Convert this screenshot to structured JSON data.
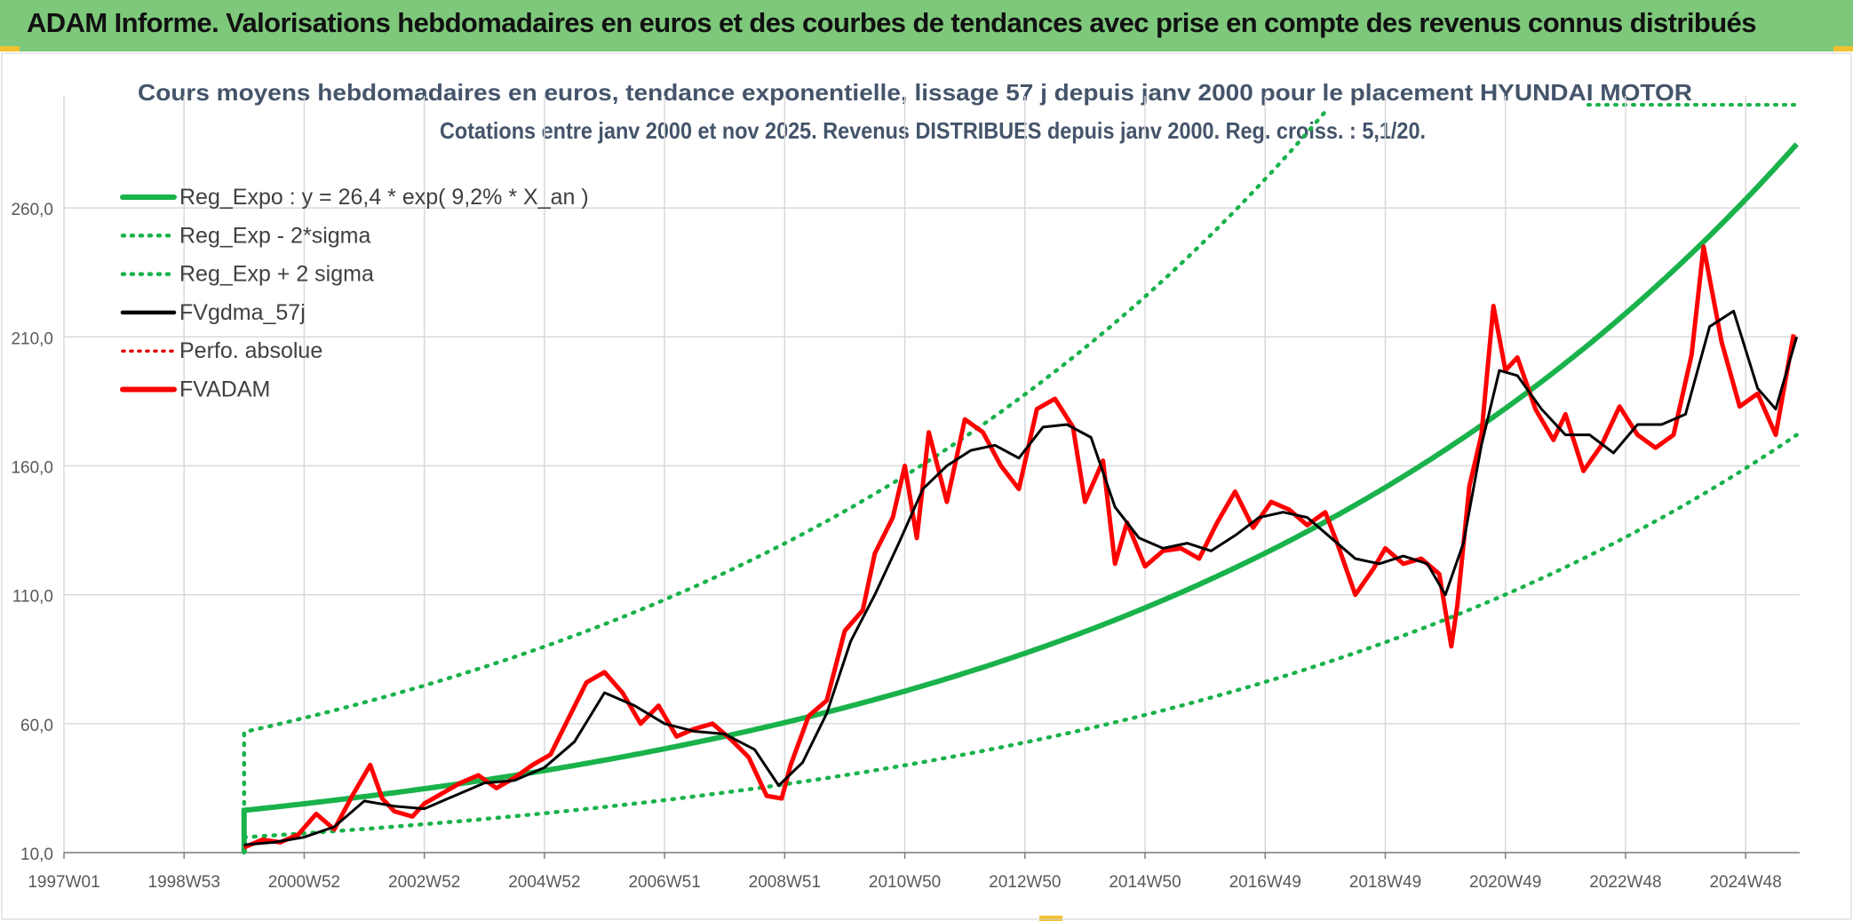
{
  "header": {
    "title": "ADAM Informe. Valorisations hebdomadaires en euros et des courbes de tendances avec prise en compte des revenus connus distribués"
  },
  "colors": {
    "header_bg": "#7ec87b",
    "reg_expo": "#19b24b",
    "sigma": "#19b24b",
    "fvgdma": "#000000",
    "perfo": "#e60000",
    "fvadam": "#ff0000",
    "grid": "#d9d9d9"
  },
  "chart_data": {
    "type": "line",
    "title_line1": "Cours moyens hebdomadaires en euros, tendance exponentielle, lissage 57 j depuis janv 2000 pour le placement HYUNDAI MOTOR",
    "title_line2": "Cotations entre janv 2000 et nov 2025. Revenus DISTRIBUES depuis janv 2000. Reg. croiss. : 5,1/20.",
    "xlabel": "",
    "ylabel": "",
    "xlim": [
      1997.0,
      2025.9
    ],
    "ylim": [
      10,
      300
    ],
    "ytick_values": [
      10,
      60,
      110,
      160,
      210,
      260
    ],
    "ytick_labels": [
      "10,0",
      "60,0",
      "110,0",
      "160,0",
      "210,0",
      "260,0"
    ],
    "xtick_values": [
      1997.0,
      1999.0,
      2001.0,
      2003.0,
      2005.0,
      2007.0,
      2009.0,
      2011.0,
      2013.0,
      2015.0,
      2017.0,
      2019.0,
      2021.0,
      2023.0,
      2025.0
    ],
    "xtick_labels": [
      "1997W01",
      "1998W53",
      "2000W52",
      "2002W52",
      "2004W52",
      "2006W51",
      "2008W51",
      "2010W50",
      "2012W50",
      "2014W50",
      "2016W49",
      "2018W49",
      "2020W49",
      "2022W48",
      "2024W48"
    ],
    "legend": [
      {
        "label": "Reg_Expo : y = 26,4 * exp( 9,2% *  X_an )",
        "style": "solid-green"
      },
      {
        "label": "Reg_Exp - 2*sigma",
        "style": "dotted-green"
      },
      {
        "label": "Reg_Exp + 2 sigma",
        "style": "dotted-green"
      },
      {
        "label": "FVgdma_57j",
        "style": "solid-black"
      },
      {
        "label": "Perfo. absolue",
        "style": "dotted-red"
      },
      {
        "label": "FVADAM",
        "style": "solid-red"
      }
    ],
    "legend_position": "top-left",
    "grid": true,
    "regression": {
      "start": 2000.0,
      "end": 2025.85,
      "y_start": 26.4,
      "growth": 0.092,
      "minus_factor": 0.604,
      "plus_factor": 2.15
    },
    "series": [
      {
        "name": "FVADAM",
        "x": [
          2000.0,
          2000.3,
          2000.6,
          2000.9,
          2001.2,
          2001.5,
          2001.8,
          2002.1,
          2002.3,
          2002.5,
          2002.8,
          2003.0,
          2003.3,
          2003.6,
          2003.9,
          2004.2,
          2004.5,
          2004.8,
          2005.1,
          2005.4,
          2005.7,
          2006.0,
          2006.3,
          2006.6,
          2006.9,
          2007.2,
          2007.5,
          2007.8,
          2008.1,
          2008.4,
          2008.7,
          2008.95,
          2009.1,
          2009.4,
          2009.7,
          2010.0,
          2010.3,
          2010.5,
          2010.8,
          2011.0,
          2011.2,
          2011.4,
          2011.7,
          2012.0,
          2012.3,
          2012.6,
          2012.9,
          2013.2,
          2013.5,
          2013.8,
          2014.0,
          2014.3,
          2014.5,
          2014.7,
          2015.0,
          2015.3,
          2015.6,
          2015.9,
          2016.2,
          2016.5,
          2016.8,
          2017.1,
          2017.4,
          2017.7,
          2018.0,
          2018.2,
          2018.5,
          2018.8,
          2019.0,
          2019.3,
          2019.6,
          2019.9,
          2020.1,
          2020.2,
          2020.4,
          2020.6,
          2020.8,
          2021.0,
          2021.2,
          2021.5,
          2021.8,
          2022.0,
          2022.3,
          2022.6,
          2022.9,
          2023.2,
          2023.5,
          2023.8,
          2024.1,
          2024.3,
          2024.6,
          2024.9,
          2025.2,
          2025.5,
          2025.8
        ],
        "y": [
          12,
          15,
          14,
          17,
          25,
          19,
          32,
          44,
          31,
          26,
          24,
          29,
          33,
          37,
          40,
          35,
          39,
          44,
          48,
          62,
          76,
          80,
          72,
          60,
          67,
          55,
          58,
          60,
          54,
          47,
          32,
          31,
          44,
          63,
          69,
          96,
          104,
          126,
          140,
          160,
          132,
          173,
          146,
          178,
          173,
          160,
          151,
          182,
          186,
          175,
          146,
          162,
          122,
          138,
          121,
          127,
          128,
          124,
          138,
          150,
          136,
          146,
          143,
          137,
          142,
          130,
          110,
          120,
          128,
          122,
          124,
          118,
          90,
          106,
          152,
          172,
          222,
          197,
          202,
          182,
          170,
          180,
          158,
          168,
          183,
          172,
          167,
          172,
          203,
          245,
          208,
          183,
          188,
          172,
          211
        ]
      },
      {
        "name": "FVgdma_57j",
        "x": [
          2000.0,
          2000.5,
          2001.0,
          2001.5,
          2002.0,
          2002.5,
          2003.0,
          2003.5,
          2004.0,
          2004.5,
          2005.0,
          2005.5,
          2006.0,
          2006.5,
          2007.0,
          2007.5,
          2008.0,
          2008.5,
          2008.9,
          2009.3,
          2009.7,
          2010.1,
          2010.5,
          2010.9,
          2011.3,
          2011.7,
          2012.1,
          2012.5,
          2012.9,
          2013.3,
          2013.7,
          2014.1,
          2014.5,
          2014.9,
          2015.3,
          2015.7,
          2016.1,
          2016.5,
          2016.9,
          2017.3,
          2017.7,
          2018.1,
          2018.5,
          2018.9,
          2019.3,
          2019.7,
          2020.0,
          2020.3,
          2020.6,
          2020.9,
          2021.2,
          2021.6,
          2022.0,
          2022.4,
          2022.8,
          2023.2,
          2023.6,
          2024.0,
          2024.4,
          2024.8,
          2025.2,
          2025.5,
          2025.85
        ],
        "y": [
          13,
          14,
          16,
          20,
          30,
          28,
          27,
          32,
          37,
          38,
          43,
          53,
          72,
          67,
          60,
          57,
          56,
          50,
          36,
          45,
          64,
          92,
          110,
          130,
          151,
          160,
          166,
          168,
          163,
          175,
          176,
          171,
          144,
          132,
          128,
          130,
          127,
          133,
          140,
          142,
          140,
          132,
          124,
          122,
          125,
          122,
          110,
          130,
          168,
          197,
          195,
          182,
          172,
          172,
          165,
          176,
          176,
          180,
          214,
          220,
          190,
          182,
          210
        ]
      }
    ]
  }
}
